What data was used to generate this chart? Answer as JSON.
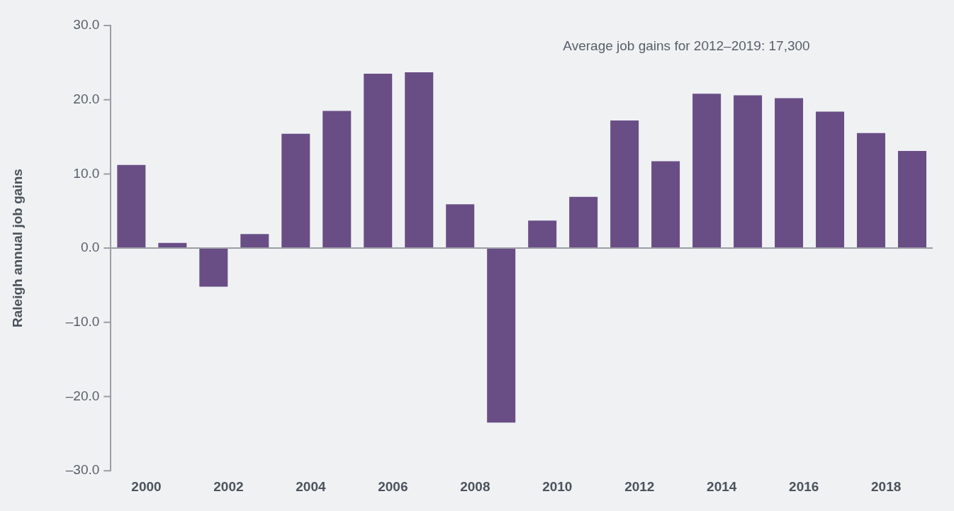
{
  "chart_data": {
    "type": "bar",
    "ylabel": "Raleigh annual job gains",
    "categories": [
      "2000",
      null,
      "2002",
      null,
      "2004",
      null,
      "2006",
      null,
      "2008",
      null,
      "2010",
      null,
      "2012",
      null,
      "2014",
      null,
      "2016",
      null,
      "2018",
      null
    ],
    "values": [
      11.2,
      0.7,
      -5.2,
      1.9,
      15.4,
      18.5,
      23.5,
      23.7,
      5.9,
      -23.5,
      3.7,
      6.9,
      17.2,
      11.7,
      20.8,
      20.6,
      20.2,
      18.4,
      15.5,
      13.1
    ],
    "color": "#694e86",
    "ylim": [
      -30,
      30
    ],
    "yticks": [
      {
        "value": -30,
        "label": "–30.0"
      },
      {
        "value": -20,
        "label": "–20.0"
      },
      {
        "value": -10,
        "label": "–10.0"
      },
      {
        "value": 0,
        "label": "0.0"
      },
      {
        "value": 10,
        "label": "10.0"
      },
      {
        "value": 20,
        "label": "20.0"
      },
      {
        "value": 30,
        "label": "30.0"
      }
    ],
    "legend": false,
    "annotations": [
      "Average job gains for 2012–2019: 17,300"
    ]
  }
}
